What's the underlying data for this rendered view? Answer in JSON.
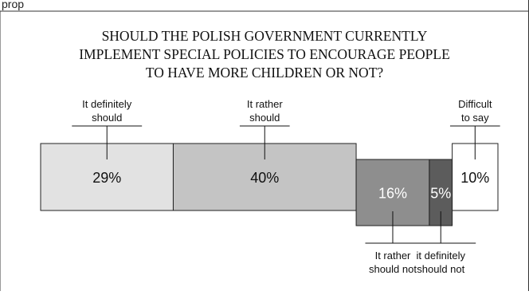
{
  "chart_data": {
    "type": "bar",
    "title_lines": [
      "SHOULD THE POLISH GOVERNMENT CURRENTLY",
      "IMPLEMENT SPECIAL POLICIES TO ENCOURAGE PEOPLE",
      "TO HAVE MORE CHILDREN OR NOT?"
    ],
    "top_label": "prop",
    "unit": "%",
    "segments": [
      {
        "name": [
          "It definitely",
          "should"
        ],
        "value": 29,
        "value_label": "29%",
        "fill": "#e2e2e2",
        "text_color": "#111111",
        "group": "up",
        "label_pos": "above"
      },
      {
        "name": [
          "It rather",
          "should"
        ],
        "value": 40,
        "value_label": "40%",
        "fill": "#c4c4c4",
        "text_color": "#111111",
        "group": "up",
        "label_pos": "above"
      },
      {
        "name": [
          "It rather",
          "should not"
        ],
        "value": 16,
        "value_label": "16%",
        "fill": "#8e8e8e",
        "text_color": "#ffffff",
        "group": "down",
        "label_pos": "below"
      },
      {
        "name": [
          "it definitely",
          "should not"
        ],
        "value": 5,
        "value_label": "5%",
        "fill": "#5c5c5c",
        "text_color": "#ffffff",
        "group": "down",
        "label_pos": "below"
      },
      {
        "name": [
          "Difficult",
          "to say"
        ],
        "value": 10,
        "value_label": "10%",
        "fill": "#ffffff",
        "text_color": "#111111",
        "group": "up",
        "label_pos": "above"
      }
    ]
  }
}
